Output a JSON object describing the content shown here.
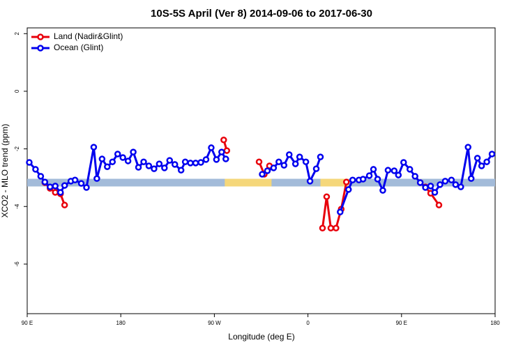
{
  "chart_data": {
    "type": "line",
    "title": "10S-5S April (Ver 8)   2014-09-06 to 2017-06-30",
    "xlabel": "Longitude (deg E)",
    "ylabel": "XCO2 - MLO trend (ppm)",
    "xlim": [
      90,
      540
    ],
    "ylim": [
      -7.72,
      2.2
    ],
    "xticks": [
      {
        "value": 90,
        "label": "90 E"
      },
      {
        "value": 180,
        "label": "180"
      },
      {
        "value": 270,
        "label": "90 W"
      },
      {
        "value": 360,
        "label": "0"
      },
      {
        "value": 450,
        "label": "90 E"
      },
      {
        "value": 540,
        "label": "180"
      }
    ],
    "yticks": [
      2,
      0,
      -2,
      -4,
      -6
    ],
    "legend": "top-left",
    "strip": {
      "y": -3.17,
      "color": "#a3bbd9",
      "land_color": "#f5d77a",
      "land": [
        [
          280,
          325
        ],
        [
          372,
          399
        ]
      ]
    },
    "series": [
      {
        "name": "Land (Nadir&Glint)",
        "color": "#e8000b",
        "x": [
          107,
          112,
          117,
          122,
          126,
          null,
          279,
          282,
          null,
          313,
          318,
          323,
          null,
          374,
          378,
          382,
          387,
          392,
          397,
          null,
          468,
          473,
          478,
          486
        ],
        "values": [
          -3.17,
          -3.37,
          -3.51,
          -3.56,
          -3.95,
          null,
          -1.69,
          -2.06,
          null,
          -2.45,
          -2.88,
          -2.59,
          null,
          -4.75,
          -3.66,
          -4.75,
          -4.75,
          -4.09,
          -3.15,
          null,
          -3.17,
          -3.32,
          -3.54,
          -3.95
        ]
      },
      {
        "name": "Ocean (Glint)",
        "color": "#0000ee",
        "x": [
          92,
          98,
          103,
          107,
          112,
          117,
          122,
          126,
          132,
          136,
          142,
          147,
          154,
          157,
          162,
          167,
          172,
          177,
          182,
          187,
          192,
          197,
          202,
          207,
          212,
          217,
          222,
          227,
          232,
          238,
          242,
          247,
          252,
          257,
          262,
          267,
          272,
          277,
          281,
          null,
          316,
          321,
          327,
          332,
          337,
          342,
          348,
          352,
          358,
          362,
          368,
          372,
          null,
          391,
          399,
          403,
          409,
          413,
          419,
          423,
          427,
          432,
          437,
          443,
          447,
          452,
          458,
          463,
          468,
          473,
          478,
          482,
          487,
          492,
          498,
          502,
          507,
          514,
          517,
          523,
          527,
          532,
          537
        ],
        "values": [
          -2.47,
          -2.71,
          -2.95,
          -3.15,
          -3.32,
          -3.29,
          -3.51,
          -3.27,
          -3.12,
          -3.08,
          -3.2,
          -3.34,
          -1.94,
          -3.03,
          -2.35,
          -2.62,
          -2.45,
          -2.18,
          -2.3,
          -2.42,
          -2.11,
          -2.64,
          -2.45,
          -2.59,
          -2.69,
          -2.52,
          -2.66,
          -2.4,
          -2.54,
          -2.74,
          -2.45,
          -2.49,
          -2.49,
          -2.47,
          -2.37,
          -1.96,
          -2.37,
          -2.11,
          -2.35,
          null,
          -2.88,
          -2.76,
          -2.66,
          -2.45,
          -2.57,
          -2.2,
          -2.52,
          -2.28,
          -2.45,
          -3.12,
          -2.69,
          -2.28,
          null,
          -4.19,
          -3.41,
          -3.08,
          -3.08,
          -3.05,
          -2.93,
          -2.71,
          -3.05,
          -3.44,
          -2.74,
          -2.76,
          -2.91,
          -2.47,
          -2.71,
          -2.95,
          -3.17,
          -3.34,
          -3.29,
          -3.51,
          -3.24,
          -3.12,
          -3.08,
          -3.24,
          -3.32,
          -1.94,
          -3.03,
          -2.32,
          -2.59,
          -2.45,
          -2.18
        ]
      }
    ]
  }
}
